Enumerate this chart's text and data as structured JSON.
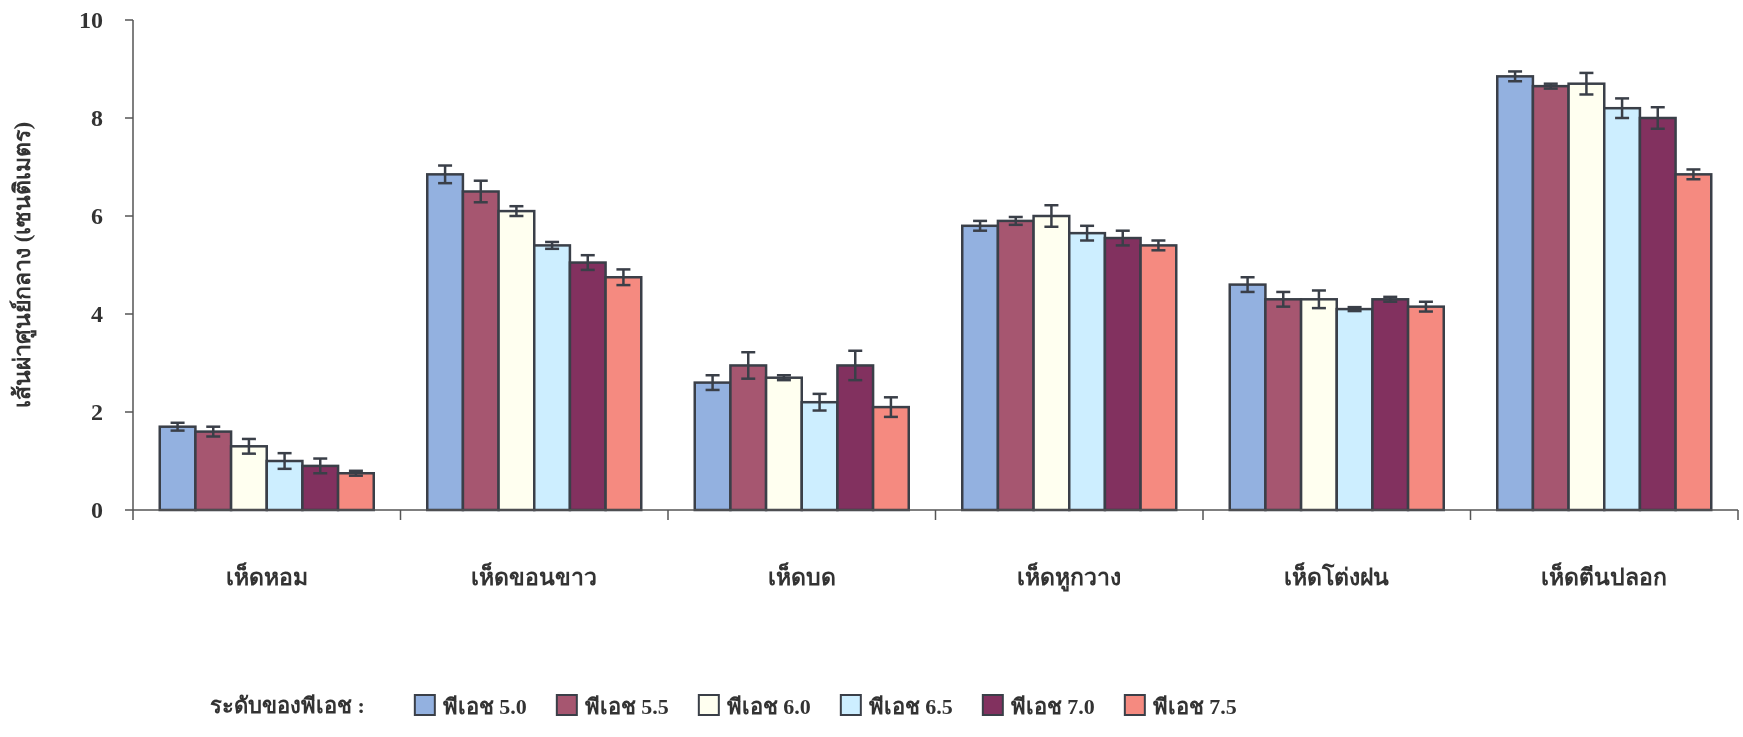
{
  "chart_data": {
    "type": "bar",
    "ylabel": "เส้นผ่าศูนย์กลาง (เซนติเมตร)",
    "legend_title": "ระดับของพีเอช   :",
    "legend": "bottom",
    "categories": [
      "เห็ดหอม",
      "เห็ดขอนขาว",
      "เห็ดบด",
      "เห็ดหูกวาง",
      "เห็ดโต่งฝน",
      "เห็ดตีนปลอก"
    ],
    "ylim": [
      0,
      10
    ],
    "yticks": [
      0,
      2,
      4,
      6,
      8,
      10
    ],
    "series": [
      {
        "name": "พีเอช 5.0",
        "color": "#93b1e0",
        "values": [
          1.7,
          6.85,
          2.6,
          5.8,
          4.6,
          8.85
        ],
        "errors": [
          0.08,
          0.18,
          0.15,
          0.1,
          0.15,
          0.1
        ]
      },
      {
        "name": "พีเอช 5.5",
        "color": "#a65670",
        "values": [
          1.6,
          6.5,
          2.95,
          5.9,
          4.3,
          8.65
        ],
        "errors": [
          0.1,
          0.22,
          0.27,
          0.08,
          0.15,
          0.05
        ]
      },
      {
        "name": "พีเอช 6.0",
        "color": "#fffff0",
        "values": [
          1.3,
          6.1,
          2.7,
          6.0,
          4.3,
          8.7
        ],
        "errors": [
          0.15,
          0.1,
          0.05,
          0.22,
          0.18,
          0.22
        ]
      },
      {
        "name": "พีเอช 6.5",
        "color": "#cdeeff",
        "values": [
          1.0,
          5.4,
          2.2,
          5.65,
          4.1,
          8.2
        ],
        "errors": [
          0.16,
          0.07,
          0.17,
          0.15,
          0.04,
          0.2
        ]
      },
      {
        "name": "พีเอช 7.0",
        "color": "#82315f",
        "values": [
          0.9,
          5.05,
          2.95,
          5.55,
          4.3,
          8.0
        ],
        "errors": [
          0.15,
          0.15,
          0.3,
          0.15,
          0.05,
          0.22
        ]
      },
      {
        "name": "พีเอช 7.5",
        "color": "#f58a80",
        "values": [
          0.75,
          4.75,
          2.1,
          5.4,
          4.15,
          6.85
        ],
        "errors": [
          0.05,
          0.16,
          0.2,
          0.1,
          0.1,
          0.1
        ]
      }
    ]
  }
}
